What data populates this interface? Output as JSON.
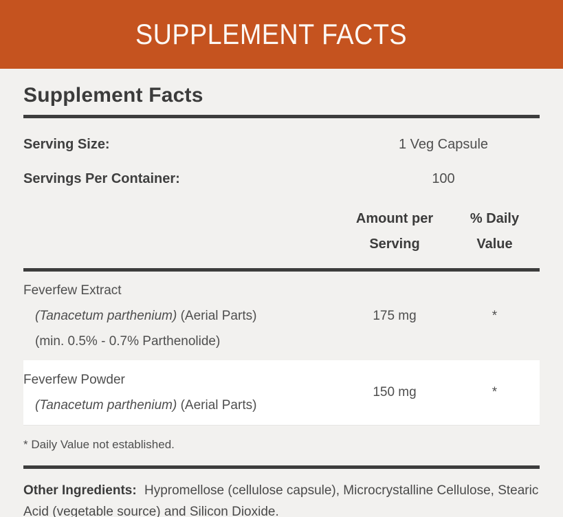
{
  "banner": {
    "title": "SUPPLEMENT FACTS"
  },
  "panel": {
    "heading": "Supplement Facts",
    "serving_size": {
      "label": "Serving Size:",
      "value": "1 Veg Capsule"
    },
    "servings_per_container": {
      "label": "Servings Per Container:",
      "value": "100"
    },
    "columns": {
      "amount_line1": "Amount per",
      "amount_line2": "Serving",
      "daily_line1": "% Daily",
      "daily_line2": "Value"
    },
    "rows": [
      {
        "name": "Feverfew Extract",
        "latin": "(Tanacetum parthenium)",
        "detail": "(Aerial Parts)",
        "detail2": "(min. 0.5% - 0.7% Parthenolide)",
        "amount": "175 mg",
        "daily": "*"
      },
      {
        "name": "Feverfew Powder",
        "latin": "(Tanacetum parthenium)",
        "detail": "(Aerial Parts)",
        "amount": "150 mg",
        "daily": "*"
      }
    ],
    "footnote": "* Daily Value not established.",
    "other_ingredients": {
      "label": "Other Ingredients:",
      "text": "Hypromellose (cellulose capsule), Microcrystalline Cellulose, Stearic Acid (vegetable source) and Silicon Dioxide."
    }
  },
  "colors": {
    "accent_orange": "#C5531F",
    "panel_background": "#F2F1EF",
    "rule_dark": "#3D3D3D",
    "row_highlight": "#FFFFFF"
  }
}
